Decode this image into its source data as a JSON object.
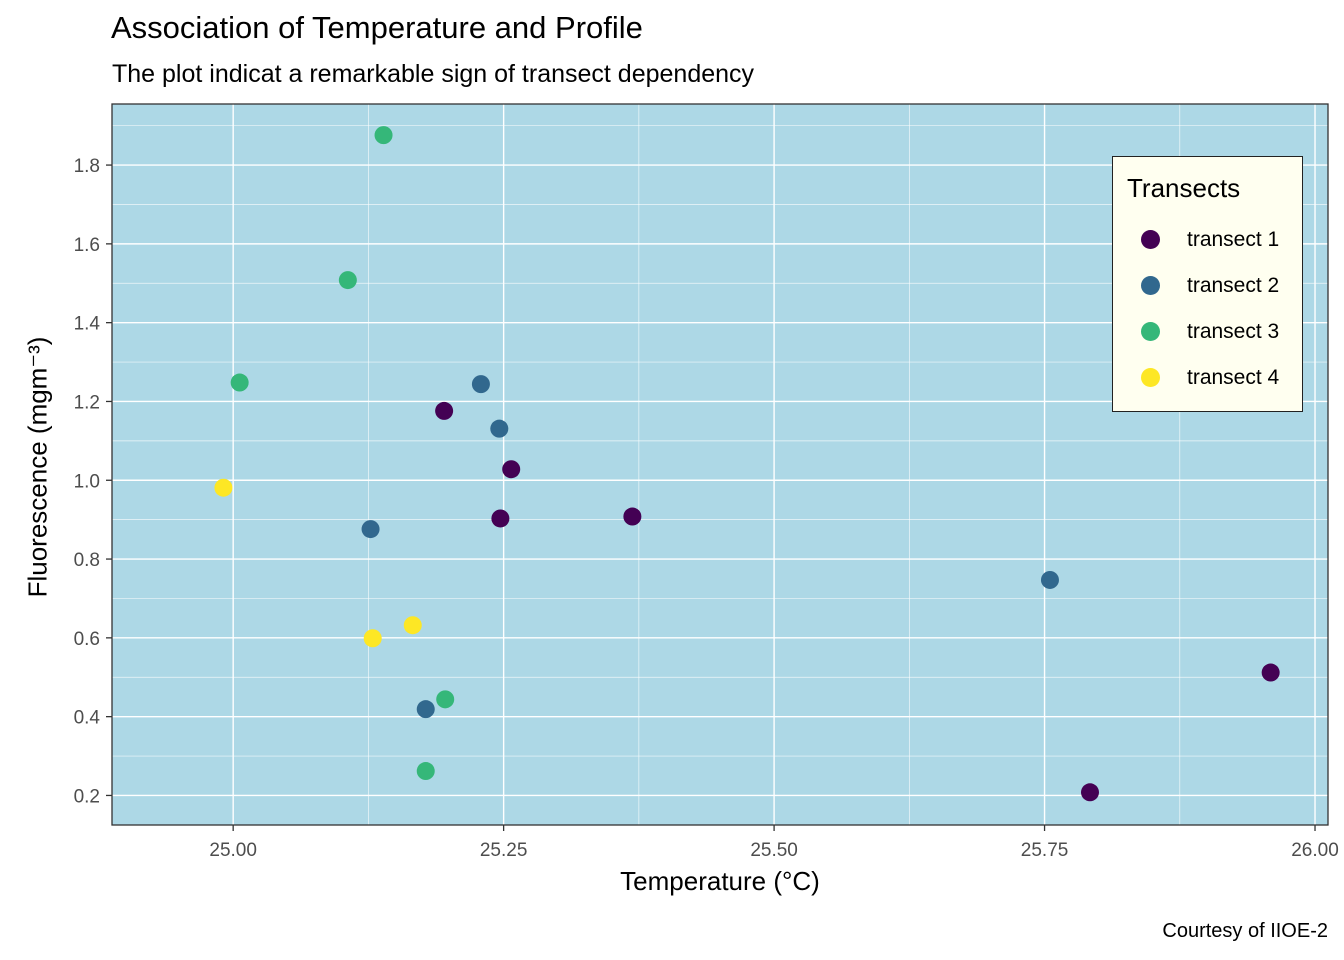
{
  "title": "Association of Temperature and Profile",
  "subtitle": "The plot indicat a remarkable sign of transect dependency",
  "caption": "Courtesy of IIOE-2",
  "colors": {
    "panel_background": "#add8e6",
    "grid": "#ffffff",
    "legend_background": "#fffff0"
  },
  "chart_data": {
    "type": "scatter",
    "title": "Association of Temperature and Profile",
    "subtitle": "The plot indicat a remarkable sign of transect dependency",
    "xlabel": "Temperature (°C)",
    "ylabel": "Fluorescence (mgm⁻³)",
    "xlim": [
      24.888,
      26.012
    ],
    "ylim": [
      0.125,
      1.955
    ],
    "x_ticks": [
      25.0,
      25.25,
      25.5,
      25.75,
      26.0
    ],
    "x_tick_labels": [
      "25.00",
      "25.25",
      "25.50",
      "25.75",
      "26.00"
    ],
    "y_ticks": [
      0.2,
      0.4,
      0.6,
      0.8,
      1.0,
      1.2,
      1.4,
      1.6,
      1.8
    ],
    "y_tick_labels": [
      "0.2",
      "0.4",
      "0.6",
      "0.8",
      "1.0",
      "1.2",
      "1.4",
      "1.6",
      "1.8"
    ],
    "grid": true,
    "legend_title": "Transects",
    "legend_position": "top-right",
    "series": [
      {
        "name": "transect 1",
        "color": "#440154",
        "points": [
          {
            "x": 25.195,
            "y": 1.176
          },
          {
            "x": 25.257,
            "y": 1.028
          },
          {
            "x": 25.247,
            "y": 0.903
          },
          {
            "x": 25.369,
            "y": 0.908
          },
          {
            "x": 25.959,
            "y": 0.512
          },
          {
            "x": 25.792,
            "y": 0.208
          }
        ]
      },
      {
        "name": "transect 2",
        "color": "#31688e",
        "points": [
          {
            "x": 25.229,
            "y": 1.244
          },
          {
            "x": 25.246,
            "y": 1.131
          },
          {
            "x": 25.127,
            "y": 0.876
          },
          {
            "x": 25.755,
            "y": 0.747
          },
          {
            "x": 25.178,
            "y": 0.419
          }
        ]
      },
      {
        "name": "transect 3",
        "color": "#35b779",
        "points": [
          {
            "x": 25.139,
            "y": 1.876
          },
          {
            "x": 25.106,
            "y": 1.508
          },
          {
            "x": 25.006,
            "y": 1.248
          },
          {
            "x": 25.196,
            "y": 0.444
          },
          {
            "x": 25.178,
            "y": 0.262
          }
        ]
      },
      {
        "name": "transect 4",
        "color": "#fde725",
        "points": [
          {
            "x": 24.991,
            "y": 0.981
          },
          {
            "x": 25.166,
            "y": 0.632
          },
          {
            "x": 25.129,
            "y": 0.599
          }
        ]
      }
    ]
  }
}
